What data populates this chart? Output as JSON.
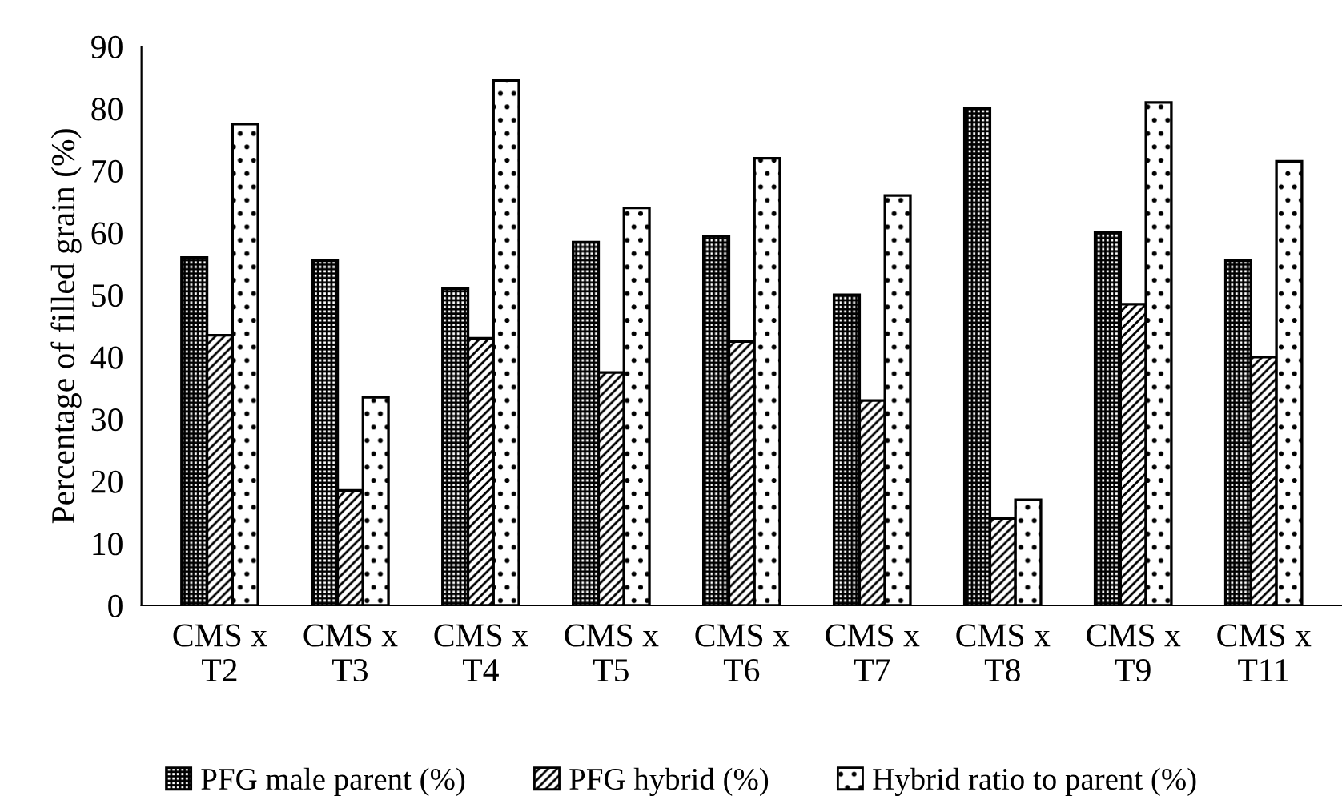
{
  "chart_data": {
    "type": "bar",
    "ylabel": "Percentage of filled grain (%)",
    "categories": [
      "CMS x\nT2",
      "CMS x\nT3",
      "CMS x\nT4",
      "CMS x\nT5",
      "CMS x\nT6",
      "CMS x\nT7",
      "CMS x\nT8",
      "CMS x\nT9",
      "CMS x\nT11"
    ],
    "series": [
      {
        "name": "PFG male parent (%)",
        "color": "#000000",
        "values": [
          56,
          55.5,
          51,
          58.5,
          59.5,
          50,
          80,
          60,
          55.5
        ]
      },
      {
        "name": "PFG hybrid (%)",
        "color": "#000000",
        "values": [
          43.5,
          18.5,
          43,
          37.5,
          42.5,
          33,
          14,
          48.5,
          40
        ]
      },
      {
        "name": "Hybrid ratio to parent (%)",
        "color": "#000000",
        "values": [
          77.5,
          33.5,
          84.5,
          64,
          72,
          66,
          17,
          81,
          71.5
        ]
      }
    ],
    "ylim": [
      0,
      90
    ],
    "yticks": [
      0,
      10,
      20,
      30,
      40,
      50,
      60,
      70,
      80,
      90
    ],
    "grid": false,
    "legend": "bottom"
  }
}
